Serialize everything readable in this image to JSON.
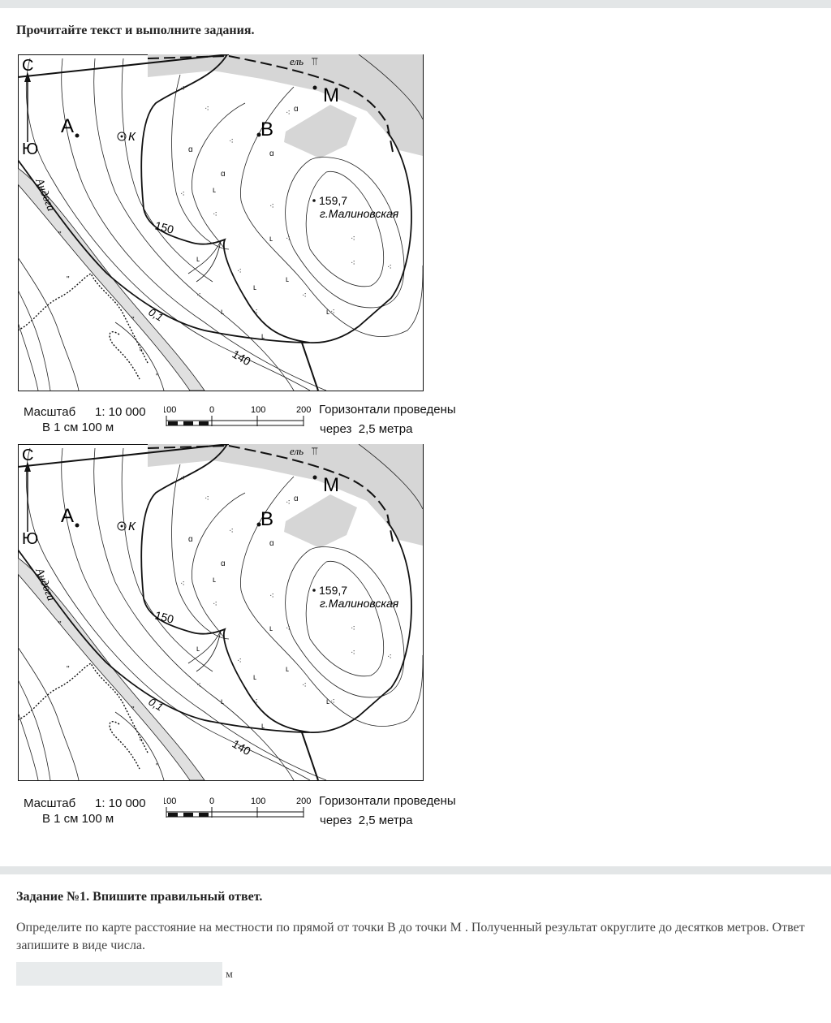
{
  "intro": "Прочитайте текст и выполните задания.",
  "map": {
    "north": "С",
    "south": "Ю",
    "point_a": "А",
    "point_k": "К",
    "point_b": "В",
    "point_m": "М",
    "forest_label": "ель",
    "height_mark": "159,7",
    "hill_name": "г.Малиновская",
    "river_name": "Андога",
    "contour_150": "150",
    "contour_140": "140",
    "river_speed": "0,1",
    "colors": {
      "forest_fill": "#d6d6d6",
      "river_fill": "#e0e0e0",
      "line": "#111111"
    }
  },
  "legend": {
    "scale_label": "Масштаб",
    "scale_value": "1: 10 000",
    "scale_note": "В 1 см 100 м",
    "bar_ticks": [
      "100",
      "0",
      "100",
      "200"
    ],
    "contours_line1": "Горизонтали проведены",
    "contours_line2": "через  2,5 метра"
  },
  "task": {
    "title": "Задание №1. Впишите правильный ответ.",
    "text": "Определите по карте расстояние на местности по прямой от точки В до точки М  . Полученный результат округлите до десятков метров. Ответ запишите в виде числа.",
    "answer_value": "",
    "unit": "м"
  }
}
